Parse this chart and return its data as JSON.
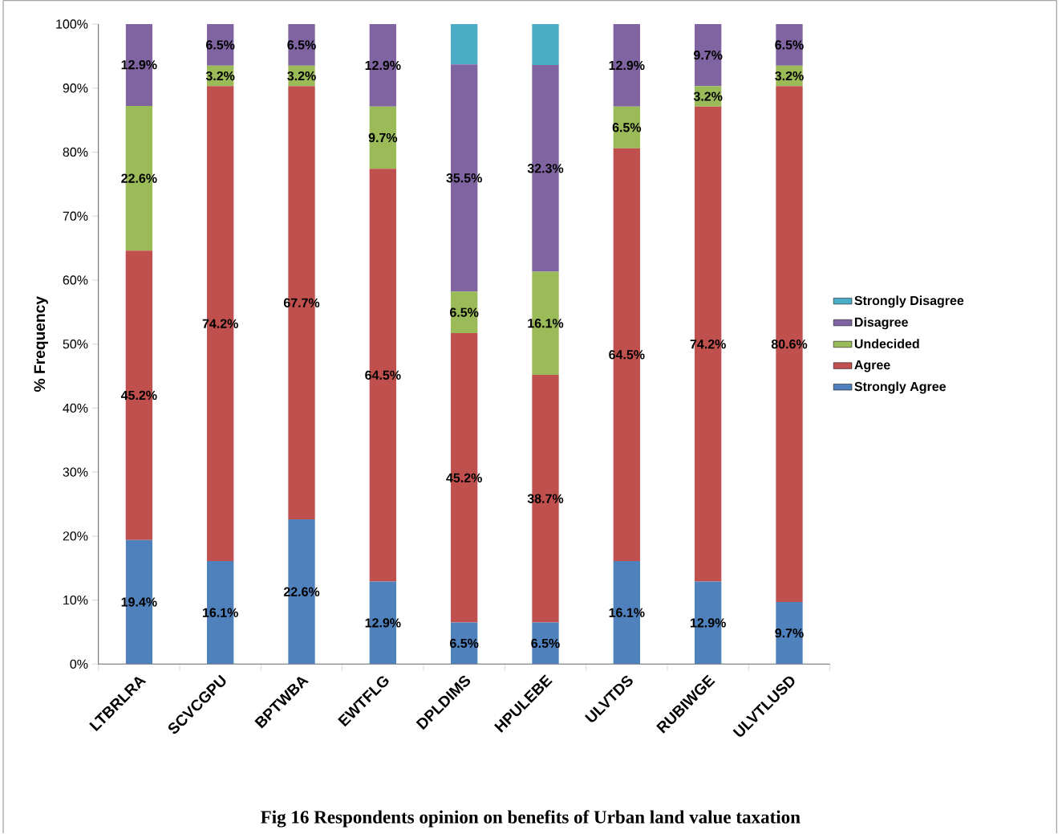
{
  "chart_data": {
    "type": "bar",
    "stacked": true,
    "title": "Fig 16  Respondents opinion on benefits of Urban land value taxation",
    "ylabel": "% Frequency",
    "categories": [
      "LTBRLRA",
      "SCVCGPU",
      "BPTWBA",
      "EWTFLG",
      "DPLDIMS",
      "HPULEBE",
      "ULVTDS",
      "RUBIWGE",
      "ULVTLUSD"
    ],
    "ylim": [
      0,
      100
    ],
    "yticks": [
      {
        "value": 0,
        "label": "0%"
      },
      {
        "value": 10,
        "label": "10%"
      },
      {
        "value": 20,
        "label": "20%"
      },
      {
        "value": 30,
        "label": "30%"
      },
      {
        "value": 40,
        "label": "40%"
      },
      {
        "value": 50,
        "label": "50%"
      },
      {
        "value": 60,
        "label": "60%"
      },
      {
        "value": 70,
        "label": "70%"
      },
      {
        "value": 80,
        "label": "80%"
      },
      {
        "value": 90,
        "label": "90%"
      },
      {
        "value": 100,
        "label": "100%"
      }
    ],
    "legend": "right",
    "grid": false,
    "series": [
      {
        "name": "Strongly Agree",
        "color": "#4f81bd",
        "values": [
          19.4,
          16.1,
          22.6,
          12.9,
          6.5,
          6.5,
          16.1,
          12.9,
          9.7
        ],
        "value_labels": [
          "19.4%",
          "16.1%",
          "22.6%",
          "12.9%",
          "6.5%",
          "6.5%",
          "16.1%",
          "12.9%",
          "9.7%"
        ]
      },
      {
        "name": "Agree",
        "color": "#c0504d",
        "values": [
          45.2,
          74.2,
          67.7,
          64.5,
          45.2,
          38.7,
          64.5,
          74.2,
          80.6
        ],
        "value_labels": [
          "45.2%",
          "74.2%",
          "67.7%",
          "64.5%",
          "45.2%",
          "38.7%",
          "64.5%",
          "74.2%",
          "80.6%"
        ]
      },
      {
        "name": "Undecided",
        "color": "#9bbb59",
        "values": [
          22.6,
          3.2,
          3.2,
          9.7,
          6.5,
          16.1,
          6.5,
          3.2,
          3.2
        ],
        "value_labels": [
          "22.6%",
          "3.2%",
          "3.2%",
          "9.7%",
          "6.5%",
          "16.1%",
          "6.5%",
          "3.2%",
          "3.2%"
        ]
      },
      {
        "name": "Disagree",
        "color": "#8064a2",
        "values": [
          12.9,
          6.5,
          6.5,
          12.9,
          35.5,
          32.3,
          12.9,
          9.7,
          6.5
        ],
        "value_labels": [
          "12.9%",
          "6.5%",
          "6.5%",
          "12.9%",
          "35.5%",
          "32.3%",
          "12.9%",
          "9.7%",
          "6.5%"
        ]
      },
      {
        "name": "Strongly Disagree",
        "color": "#4bacc6",
        "values": [
          null,
          null,
          null,
          null,
          6.3,
          6.4,
          null,
          null,
          null
        ],
        "value_labels": [
          null,
          null,
          null,
          null,
          null,
          null,
          null,
          null,
          null
        ]
      }
    ]
  }
}
